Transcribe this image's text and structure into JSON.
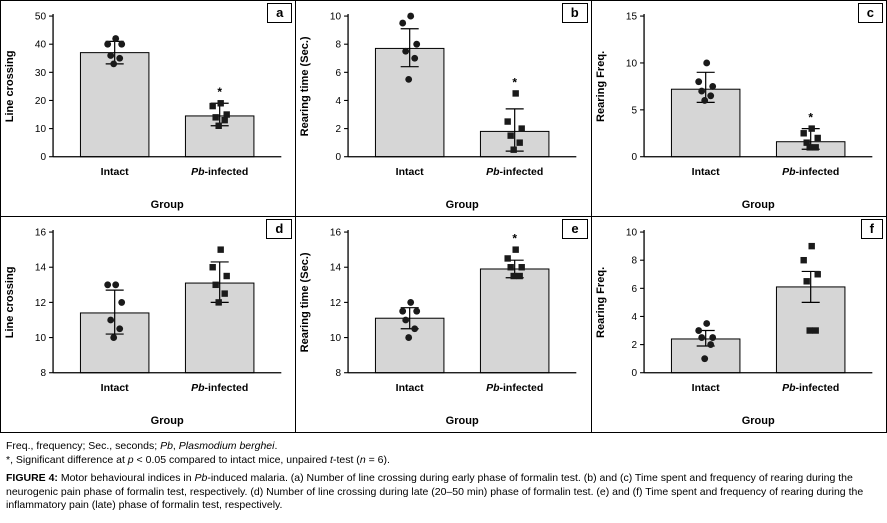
{
  "figure": {
    "caption_label": "FIGURE 4:",
    "caption_rich": [
      {
        "t": "Motor behavioural indices in "
      },
      {
        "t": "Pb",
        "i": true
      },
      {
        "t": "-induced malaria. (a) Number of line crossing during early phase of formalin test. (b) and (c) Time spent and frequency of rearing during the neurogenic pain phase of formalin test, respectively. (d) Number of line crossing during late (20–50 min) phase of formalin test. (e) and (f) Time spent and frequency of rearing during the inflammatory pain (late) phase of formalin test, respectively."
      }
    ],
    "footnotes": [
      [
        {
          "t": "Freq., frequency; Sec., seconds; "
        },
        {
          "t": "Pb",
          "i": true
        },
        {
          "t": ", "
        },
        {
          "t": "Plasmodium berghei",
          "i": true
        },
        {
          "t": "."
        }
      ],
      [
        {
          "t": "*, Significant difference at "
        },
        {
          "t": "p",
          "i": true
        },
        {
          "t": " < 0.05 compared to intact mice, unpaired "
        },
        {
          "t": "t",
          "i": true
        },
        {
          "t": "-test ("
        },
        {
          "t": "n",
          "i": true
        },
        {
          "t": " = 6)."
        }
      ]
    ]
  },
  "chart_common": {
    "xlabel": "Group",
    "categories": [
      "Intact",
      "Pb-infected"
    ],
    "categories_rich": [
      [
        {
          "t": "Intact"
        }
      ],
      [
        {
          "t": "Pb",
          "i": true
        },
        {
          "t": "-infected"
        }
      ]
    ],
    "bar_color": "#d6d6d6",
    "point_color": "#1a1a1a",
    "axis_color": "#000000",
    "sig_marker": "*"
  },
  "chart_data": [
    {
      "type": "bar",
      "panel": "a",
      "ylabel": "Line crossing",
      "xlabel": "Group",
      "categories": [
        "Intact",
        "Pb-infected"
      ],
      "ylim": [
        0,
        50
      ],
      "yticks": [
        0,
        10,
        20,
        30,
        40,
        50
      ],
      "bars": [
        37,
        14.5
      ],
      "error_low": [
        33,
        11
      ],
      "error_high": [
        41,
        19
      ],
      "points": [
        [
          42,
          40,
          40,
          36,
          35,
          33
        ],
        [
          19,
          18,
          15,
          14,
          13,
          11
        ]
      ],
      "markers": [
        "circle",
        "square"
      ],
      "significant": [
        false,
        true
      ]
    },
    {
      "type": "bar",
      "panel": "b",
      "ylabel": "Rearing time (Sec.)",
      "xlabel": "Group",
      "categories": [
        "Intact",
        "Pb-infected"
      ],
      "ylim": [
        0,
        10
      ],
      "yticks": [
        0,
        2,
        4,
        6,
        8,
        10
      ],
      "bars": [
        7.7,
        1.8
      ],
      "error_low": [
        6.4,
        0.4
      ],
      "error_high": [
        9.1,
        3.4
      ],
      "points": [
        [
          10,
          9.5,
          8,
          7.5,
          7,
          5.5
        ],
        [
          4.5,
          2.5,
          2,
          1.5,
          1,
          0.5
        ]
      ],
      "markers": [
        "circle",
        "square"
      ],
      "significant": [
        false,
        true
      ]
    },
    {
      "type": "bar",
      "panel": "c",
      "ylabel": "Rearing Freq.",
      "xlabel": "Group",
      "categories": [
        "Intact",
        "Pb-infected"
      ],
      "ylim": [
        0,
        15
      ],
      "yticks": [
        0,
        5,
        10,
        15
      ],
      "bars": [
        7.2,
        1.6
      ],
      "error_low": [
        5.8,
        0.8
      ],
      "error_high": [
        9.0,
        3.0
      ],
      "points": [
        [
          10,
          8,
          7.5,
          7,
          6.5,
          6
        ],
        [
          3,
          2.5,
          2,
          1.5,
          1,
          1
        ]
      ],
      "markers": [
        "circle",
        "square"
      ],
      "significant": [
        false,
        true
      ]
    },
    {
      "type": "bar",
      "panel": "d",
      "ylabel": "Line crossing",
      "xlabel": "Group",
      "categories": [
        "Intact",
        "Pb-infected"
      ],
      "ylim": [
        8,
        16
      ],
      "yticks": [
        8,
        10,
        12,
        14,
        16
      ],
      "bars": [
        11.4,
        13.1
      ],
      "error_low": [
        10.2,
        12.0
      ],
      "error_high": [
        12.7,
        14.3
      ],
      "points": [
        [
          13,
          13,
          12,
          11,
          10.5,
          10
        ],
        [
          15,
          14,
          13.5,
          13,
          12.5,
          12
        ]
      ],
      "markers": [
        "circle",
        "square"
      ],
      "significant": [
        false,
        false
      ]
    },
    {
      "type": "bar",
      "panel": "e",
      "ylabel": "Rearing time (Sec.)",
      "xlabel": "Group",
      "categories": [
        "Intact",
        "Pb-infected"
      ],
      "ylim": [
        8,
        16
      ],
      "yticks": [
        8,
        10,
        12,
        14,
        16
      ],
      "bars": [
        11.1,
        13.9
      ],
      "error_low": [
        10.5,
        13.4
      ],
      "error_high": [
        11.7,
        14.4
      ],
      "points": [
        [
          12,
          11.5,
          11.5,
          11,
          10.5,
          10
        ],
        [
          15,
          14.5,
          14,
          14,
          13.5,
          13.5
        ]
      ],
      "markers": [
        "circle",
        "square"
      ],
      "significant": [
        false,
        true
      ]
    },
    {
      "type": "bar",
      "panel": "f",
      "ylabel": "Rearing Freq.",
      "xlabel": "Group",
      "categories": [
        "Intact",
        "Pb-infected"
      ],
      "ylim": [
        0,
        10
      ],
      "yticks": [
        0,
        2,
        4,
        6,
        8,
        10
      ],
      "bars": [
        2.4,
        6.1
      ],
      "error_low": [
        1.9,
        5.0
      ],
      "error_high": [
        3.0,
        7.2
      ],
      "points": [
        [
          3.5,
          3,
          2.5,
          2.5,
          2,
          1
        ],
        [
          9,
          8,
          7,
          6.5,
          3,
          3
        ]
      ],
      "markers": [
        "circle",
        "square"
      ],
      "significant": [
        false,
        false
      ]
    }
  ]
}
